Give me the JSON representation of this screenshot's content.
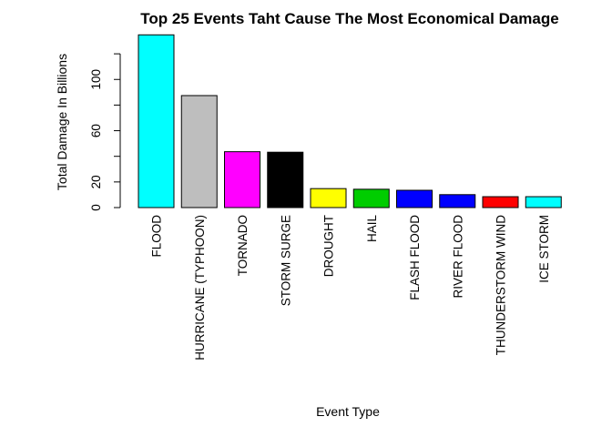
{
  "chart_data": {
    "type": "bar",
    "title": "Top 25 Events Taht Cause The Most Economical Damage",
    "xlabel": "Event Type",
    "ylabel": "Total Damage In Billions",
    "ylim": [
      0,
      135
    ],
    "yticks": [
      0,
      20,
      60,
      100
    ],
    "grid": false,
    "categories": [
      "FLOOD",
      "HURRICANE (TYPHOON)",
      "TORNADO",
      "STORM SURGE",
      "DROUGHT",
      "HAIL",
      "FLASH FLOOD",
      "RIVER FLOOD",
      "THUNDERSTORM WIND",
      "ICE STORM"
    ],
    "values": [
      134.8,
      87.4,
      43.6,
      43.2,
      14.8,
      14.3,
      13.5,
      10.1,
      8.5,
      8.5
    ],
    "colors": [
      "#00FFFF",
      "#BEBEBE",
      "#FF00FF",
      "#000000",
      "#FFFF00",
      "#00CD00",
      "#0000FF",
      "#0000FF",
      "#FF0000",
      "#00FFFF"
    ]
  }
}
